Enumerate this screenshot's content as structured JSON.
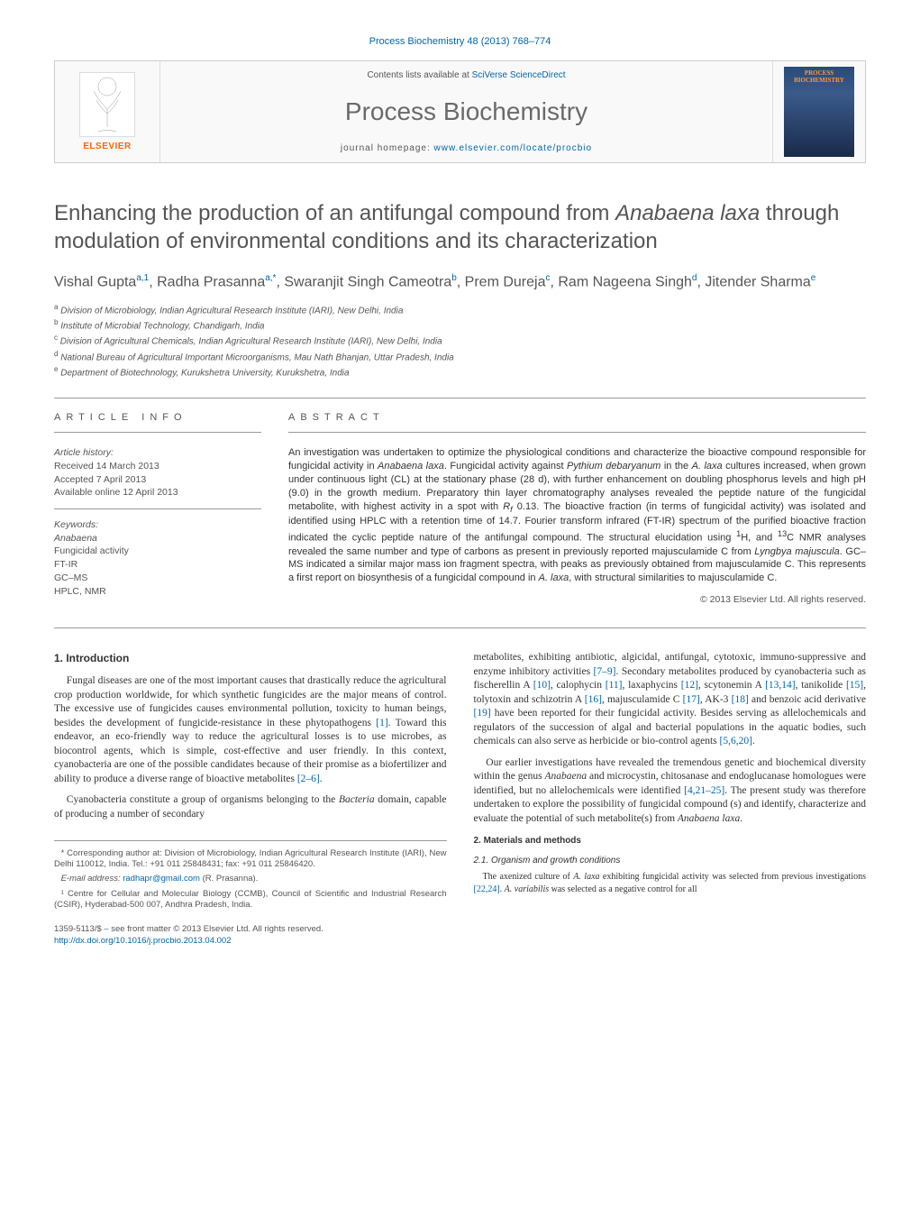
{
  "running_head": "Process Biochemistry 48 (2013) 768–774",
  "masthead": {
    "contents_prefix": "Contents lists available at ",
    "contents_link": "SciVerse ScienceDirect",
    "journal": "Process Biochemistry",
    "homepage_prefix": "journal homepage: ",
    "homepage_url": "www.elsevier.com/locate/procbio",
    "elsevier": "ELSEVIER",
    "cover_title": "PROCESS BIOCHEMISTRY"
  },
  "title_html": "Enhancing the production of an antifungal compound from <em>Anabaena laxa</em> through modulation of environmental conditions and its characterization",
  "authors_html": "Vishal Gupta<sup>a,1</sup>, Radha Prasanna<sup>a,*</sup>, Swaranjit Singh Cameotra<sup>b</sup>, Prem Dureja<sup>c</sup>, Ram Nageena Singh<sup>d</sup>, Jitender Sharma<sup>e</sup>",
  "affiliations": [
    {
      "sup": "a",
      "text": "Division of Microbiology, Indian Agricultural Research Institute (IARI), New Delhi, India"
    },
    {
      "sup": "b",
      "text": "Institute of Microbial Technology, Chandigarh, India"
    },
    {
      "sup": "c",
      "text": "Division of Agricultural Chemicals, Indian Agricultural Research Institute (IARI), New Delhi, India"
    },
    {
      "sup": "d",
      "text": "National Bureau of Agricultural Important Microorganisms, Mau Nath Bhanjan, Uttar Pradesh, India"
    },
    {
      "sup": "e",
      "text": "Department of Biotechnology, Kurukshetra University, Kurukshetra, India"
    }
  ],
  "info_label": "article info",
  "abstract_label": "abstract",
  "history": {
    "hdr": "Article history:",
    "received": "Received 14 March 2013",
    "accepted": "Accepted 7 April 2013",
    "online": "Available online 12 April 2013"
  },
  "keywords": {
    "hdr": "Keywords:",
    "items_html": [
      "<em>Anabaena</em>",
      "Fungicidal activity",
      "FT-IR",
      "GC–MS",
      "HPLC, NMR"
    ]
  },
  "abstract_html": "An investigation was undertaken to optimize the physiological conditions and characterize the bioactive compound responsible for fungicidal activity in <em>Anabaena laxa</em>. Fungicidal activity against <em>Pythium debaryanum</em> in the <em>A. laxa</em> cultures increased, when grown under continuous light (CL) at the stationary phase (28 d), with further enhancement on doubling phosphorus levels and high pH (9.0) in the growth medium. Preparatory thin layer chromatography analyses revealed the peptide nature of the fungicidal metabolite, with highest activity in a spot with <em>R<sub>f</sub></em> 0.13. The bioactive fraction (in terms of fungicidal activity) was isolated and identified using HPLC with a retention time of 14.7. Fourier transform infrared (FT-IR) spectrum of the purified bioactive fraction indicated the cyclic peptide nature of the antifungal compound. The structural elucidation using <sup>1</sup>H, and <sup>13</sup>C NMR analyses revealed the same number and type of carbons as present in previously reported majusculamide C from <em>Lyngbya majuscula</em>. GC–MS indicated a similar major mass ion fragment spectra, with peaks as previously obtained from majusculamide C. This represents a first report on biosynthesis of a fungicidal compound in <em>A. laxa</em>, with structural similarities to majusculamide C.",
  "copyright": "© 2013 Elsevier Ltd. All rights reserved.",
  "intro": {
    "heading": "1. Introduction",
    "p1_html": "Fungal diseases are one of the most important causes that drastically reduce the agricultural crop production worldwide, for which synthetic fungicides are the major means of control. The excessive use of fungicides causes environmental pollution, toxicity to human beings, besides the development of fungicide-resistance in these phytopathogens <span class='cite'>[1]</span>. Toward this endeavor, an eco-friendly way to reduce the agricultural losses is to use microbes, as biocontrol agents, which is simple, cost-effective and user friendly. In this context, cyanobacteria are one of the possible candidates because of their promise as a biofertilizer and ability to produce a diverse range of bioactive metabolites <span class='cite'>[2–6]</span>.",
    "p2_html": "Cyanobacteria constitute a group of organisms belonging to the <em>Bacteria</em> domain, capable of producing a number of secondary",
    "p3_html": "metabolites, exhibiting antibiotic, algicidal, antifungal, cytotoxic, immuno-suppressive and enzyme inhibitory activities <span class='cite'>[7–9]</span>. Secondary metabolites produced by cyanobacteria such as fischerellin A <span class='cite'>[10]</span>, calophycin <span class='cite'>[11]</span>, laxaphycins <span class='cite'>[12]</span>, scytonemin A <span class='cite'>[13,14]</span>, tanikolide <span class='cite'>[15]</span>, tolytoxin and schizotrin A <span class='cite'>[16]</span>, majusculamide C <span class='cite'>[17]</span>, AK-3 <span class='cite'>[18]</span> and benzoic acid derivative <span class='cite'>[19]</span> have been reported for their fungicidal activity. Besides serving as allelochemicals and regulators of the succession of algal and bacterial populations in the aquatic bodies, such chemicals can also serve as herbicide or bio-control agents <span class='cite'>[5,6,20]</span>.",
    "p4_html": "Our earlier investigations have revealed the tremendous genetic and biochemical diversity within the genus <em>Anabaena</em> and microcystin, chitosanase and endoglucanase homologues were identified, but no allelochemicals were identified <span class='cite'>[4,21–25]</span>. The present study was therefore undertaken to explore the possibility of fungicidal compound (s) and identify, characterize and evaluate the potential of such metabolite(s) from <em>Anabaena laxa</em>."
  },
  "methods": {
    "heading": "2. Materials and methods",
    "sub1": "2.1. Organism and growth conditions",
    "p1_html": "The axenized culture of <em>A. laxa</em> exhibiting fungicidal activity was selected from previous investigations <span class='cite'>[22,24]</span>. <em>A. variabilis</em> was selected as a negative control for all"
  },
  "footnotes": {
    "corr_html": "* Corresponding author at: Division of Microbiology, Indian Agricultural Research Institute (IARI), New Delhi 110012, India. Tel.: +91 011 25848431; fax: +91 011 25846420.",
    "email_label": "E-mail address:",
    "email": "radhapr@gmail.com",
    "email_suffix": "(R. Prasanna).",
    "note1": "¹ Centre for Cellular and Molecular Biology (CCMB), Council of Scientific and Industrial Research (CSIR), Hyderabad-500 007, Andhra Pradesh, India."
  },
  "footer": {
    "line1": "1359-5113/$ – see front matter © 2013 Elsevier Ltd. All rights reserved.",
    "doi": "http://dx.doi.org/10.1016/j.procbio.2013.04.002"
  },
  "colors": {
    "link": "#0066aa",
    "elsevier_orange": "#ff6600",
    "text_gray": "#555555",
    "rule": "#999999"
  }
}
